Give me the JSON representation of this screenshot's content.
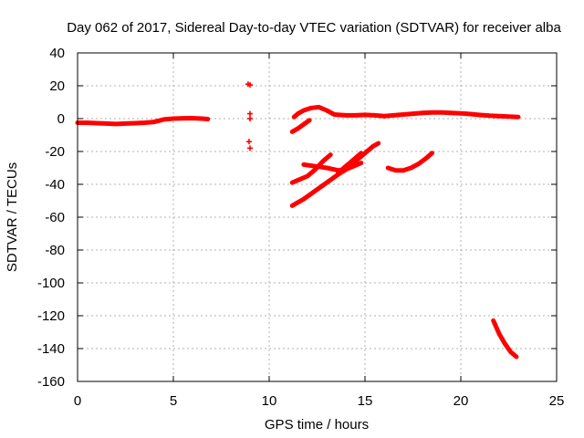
{
  "chart_data": {
    "type": "scatter",
    "title": "Day 062 of 2017, Sidereal Day-to-day VTEC variation (SDTVAR) for receiver alba",
    "xlabel": "GPS time / hours",
    "ylabel": "SDTVAR / TECUs",
    "xlim": [
      0,
      25
    ],
    "ylim": [
      -160,
      40
    ],
    "xticks": [
      0,
      5,
      10,
      15,
      20,
      25
    ],
    "yticks": [
      -160,
      -140,
      -120,
      -100,
      -80,
      -60,
      -40,
      -20,
      0,
      20,
      40
    ],
    "grid": true,
    "legend": "none",
    "colors": {
      "series": "#ff0000",
      "grid": "#b0b0b0",
      "frame": "#000000"
    },
    "series": [
      {
        "x": [
          0.0,
          0.5,
          1.0,
          1.5,
          2.0,
          2.5,
          3.0,
          3.5,
          4.0,
          4.5,
          5.0,
          5.5,
          6.0,
          6.5,
          6.8
        ],
        "y": [
          -2.5,
          -2.5,
          -2.8,
          -3.0,
          -3.3,
          -3.0,
          -2.8,
          -2.5,
          -2.0,
          -0.5,
          0.0,
          0.2,
          0.3,
          0.0,
          -0.3
        ]
      },
      {
        "x": [
          8.9,
          9.0
        ],
        "y": [
          21,
          20.5
        ],
        "style": "markers"
      },
      {
        "x": [
          9.0,
          9.0
        ],
        "y": [
          3,
          0
        ],
        "style": "markers"
      },
      {
        "x": [
          8.95,
          9.0
        ],
        "y": [
          -14,
          -18
        ],
        "style": "markers"
      },
      {
        "x": [
          11.3,
          11.5,
          11.8,
          12.2,
          12.6,
          13.0,
          13.4,
          14.0,
          14.5,
          15.0,
          15.5,
          16.0,
          16.5,
          17.0,
          17.5,
          18.0,
          18.5,
          19.0,
          19.5,
          20.0,
          20.5,
          21.0,
          21.5,
          22.0,
          22.5,
          23.0
        ],
        "y": [
          1,
          3,
          5,
          6.5,
          7,
          5,
          2.5,
          2,
          2,
          2.3,
          2,
          1.5,
          2,
          2.5,
          3,
          3.5,
          3.8,
          3.8,
          3.5,
          3.2,
          2.8,
          2.2,
          1.8,
          1.5,
          1.2,
          1.0
        ]
      },
      {
        "x": [
          11.2,
          11.5,
          11.8,
          12.1
        ],
        "y": [
          -8,
          -6,
          -3.5,
          -1
        ]
      },
      {
        "x": [
          11.2,
          11.6,
          12.0,
          12.4,
          12.8,
          13.2
        ],
        "y": [
          -39,
          -37,
          -35,
          -31,
          -26,
          -22
        ]
      },
      {
        "x": [
          11.8,
          12.4,
          13.0,
          13.6,
          14.0,
          14.4,
          14.8
        ],
        "y": [
          -28,
          -29,
          -30,
          -31.5,
          -31,
          -29,
          -27
        ]
      },
      {
        "x": [
          11.2,
          11.8,
          12.4,
          13.0,
          13.6,
          14.2,
          14.6,
          15.0,
          15.4,
          15.7
        ],
        "y": [
          -53,
          -49,
          -44,
          -39,
          -34,
          -29.5,
          -25,
          -21,
          -17,
          -15
        ]
      },
      {
        "x": [
          13.6,
          14.0,
          14.4,
          14.8
        ],
        "y": [
          -33,
          -29,
          -25,
          -21
        ]
      },
      {
        "x": [
          16.2,
          16.6,
          17.0,
          17.4,
          17.8,
          18.2,
          18.5
        ],
        "y": [
          -30,
          -31.5,
          -31.5,
          -30,
          -27.5,
          -24,
          -21
        ]
      },
      {
        "x": [
          21.7,
          22.0,
          22.3,
          22.6,
          22.9
        ],
        "y": [
          -123,
          -131,
          -137,
          -142,
          -145
        ]
      }
    ]
  }
}
